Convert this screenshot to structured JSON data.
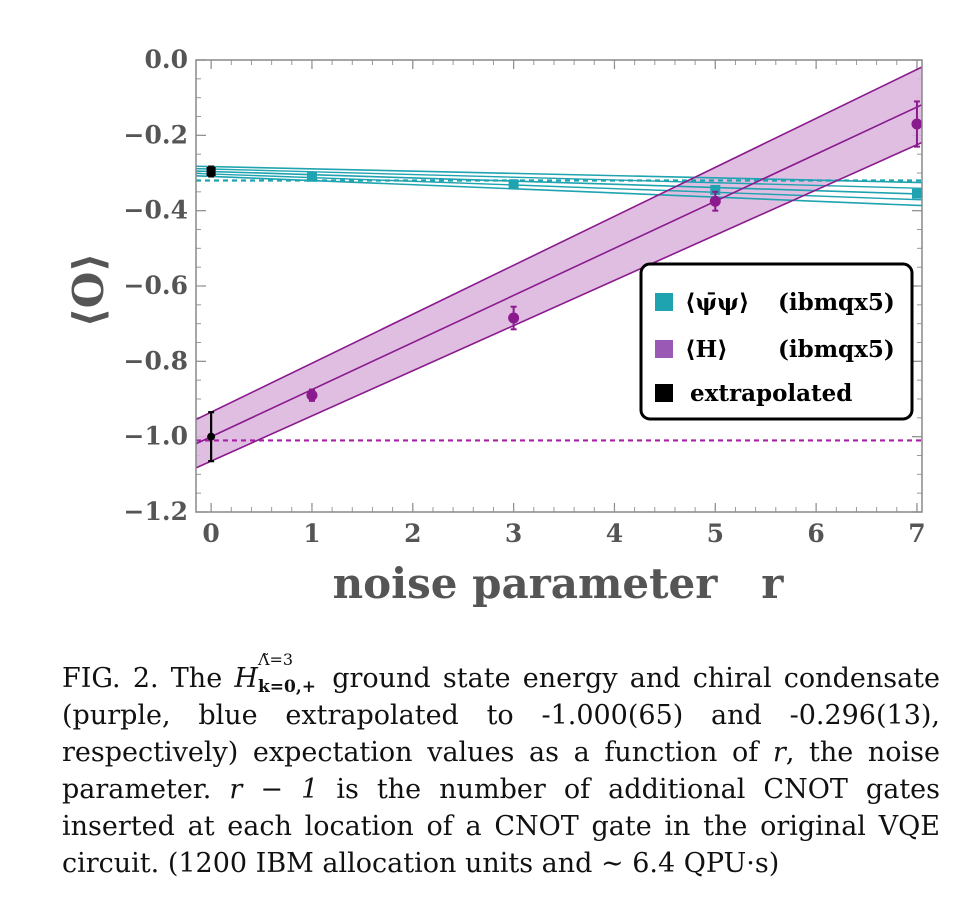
{
  "chart_data": {
    "type": "line",
    "xlabel": "noise parameter   r",
    "ylabel": "⟨O⟩",
    "xlim": [
      -0.15,
      7.05
    ],
    "ylim": [
      -1.2,
      0.0
    ],
    "x_ticks": [
      0,
      1,
      2,
      3,
      4,
      5,
      6,
      7
    ],
    "y_ticks": [
      0.0,
      -0.2,
      -0.4,
      -0.6,
      -0.8,
      -1.0,
      -1.2
    ],
    "y_tick_labels": [
      "0.0",
      "−0.2",
      "−0.4",
      "−0.6",
      "−0.8",
      "−1.0",
      "−1.2"
    ],
    "series": [
      {
        "name": "⟨ψ̄ψ⟩ (ibmqx5)",
        "color": "#1fa3b0",
        "points": [
          {
            "x": 1,
            "y": -0.31,
            "err": 0.008
          },
          {
            "x": 3,
            "y": -0.33,
            "err": 0.008
          },
          {
            "x": 5,
            "y": -0.345,
            "err": 0.008
          },
          {
            "x": 7,
            "y": -0.355,
            "err": 0.008
          }
        ],
        "fit": {
          "intercept": -0.296,
          "slope": -0.0085,
          "band_intercept": 0.013,
          "band_slope": 0.0025
        },
        "extrapolated": -0.296,
        "extrapolated_err": 0.013
      },
      {
        "name": "⟨H⟩ (ibmqx5)",
        "color": "#8b1a8e",
        "band_color": "#dbb7de",
        "points": [
          {
            "x": 1,
            "y": -0.89,
            "err": 0.015
          },
          {
            "x": 3,
            "y": -0.685,
            "err": 0.03
          },
          {
            "x": 5,
            "y": -0.375,
            "err": 0.025
          },
          {
            "x": 7,
            "y": -0.17,
            "err": 0.06
          }
        ],
        "fit": {
          "intercept": -1.0,
          "slope": 0.125,
          "band_intercept": 0.065,
          "band_slope": 0.005
        },
        "extrapolated": -1.0,
        "extrapolated_err": 0.065
      }
    ],
    "reference_lines": [
      {
        "series": "⟨ψ̄ψ⟩",
        "y": -0.32,
        "color": "#1fa3b0",
        "style": "dashed"
      },
      {
        "series": "⟨H⟩",
        "y": -1.01,
        "color": "#a81fa8",
        "style": "dashed"
      }
    ],
    "legend": {
      "position": "right",
      "entries": [
        {
          "symbol": "⟨ψ̄ψ⟩",
          "label": "(ibmqx5)",
          "color": "#1fa3b0"
        },
        {
          "symbol": "⟨H⟩",
          "label": "(ibmqx5)",
          "color": "#9b59b6"
        },
        {
          "symbol": "",
          "label": "extrapolated",
          "color": "#000000"
        }
      ]
    }
  },
  "caption": {
    "prefix": "FIG. 2.  The",
    "math_symbol": "H",
    "math_sup": "Λ̃=3",
    "math_sub": "k=0,+",
    "text_1": " ground state energy and chiral condensate (purple, blue extrapolated to -1.000(65) and -0.296(13), respectively) expectation values as a function of ",
    "var_r": "r",
    "text_2": ", the noise parameter.  ",
    "expr": "r − 1",
    "text_3": " is the number of additional CNOT gates inserted at each location of a CNOT gate in the original VQE circuit. (1200 IBM allocation units and ∼ 6.4 QPU·s)"
  }
}
